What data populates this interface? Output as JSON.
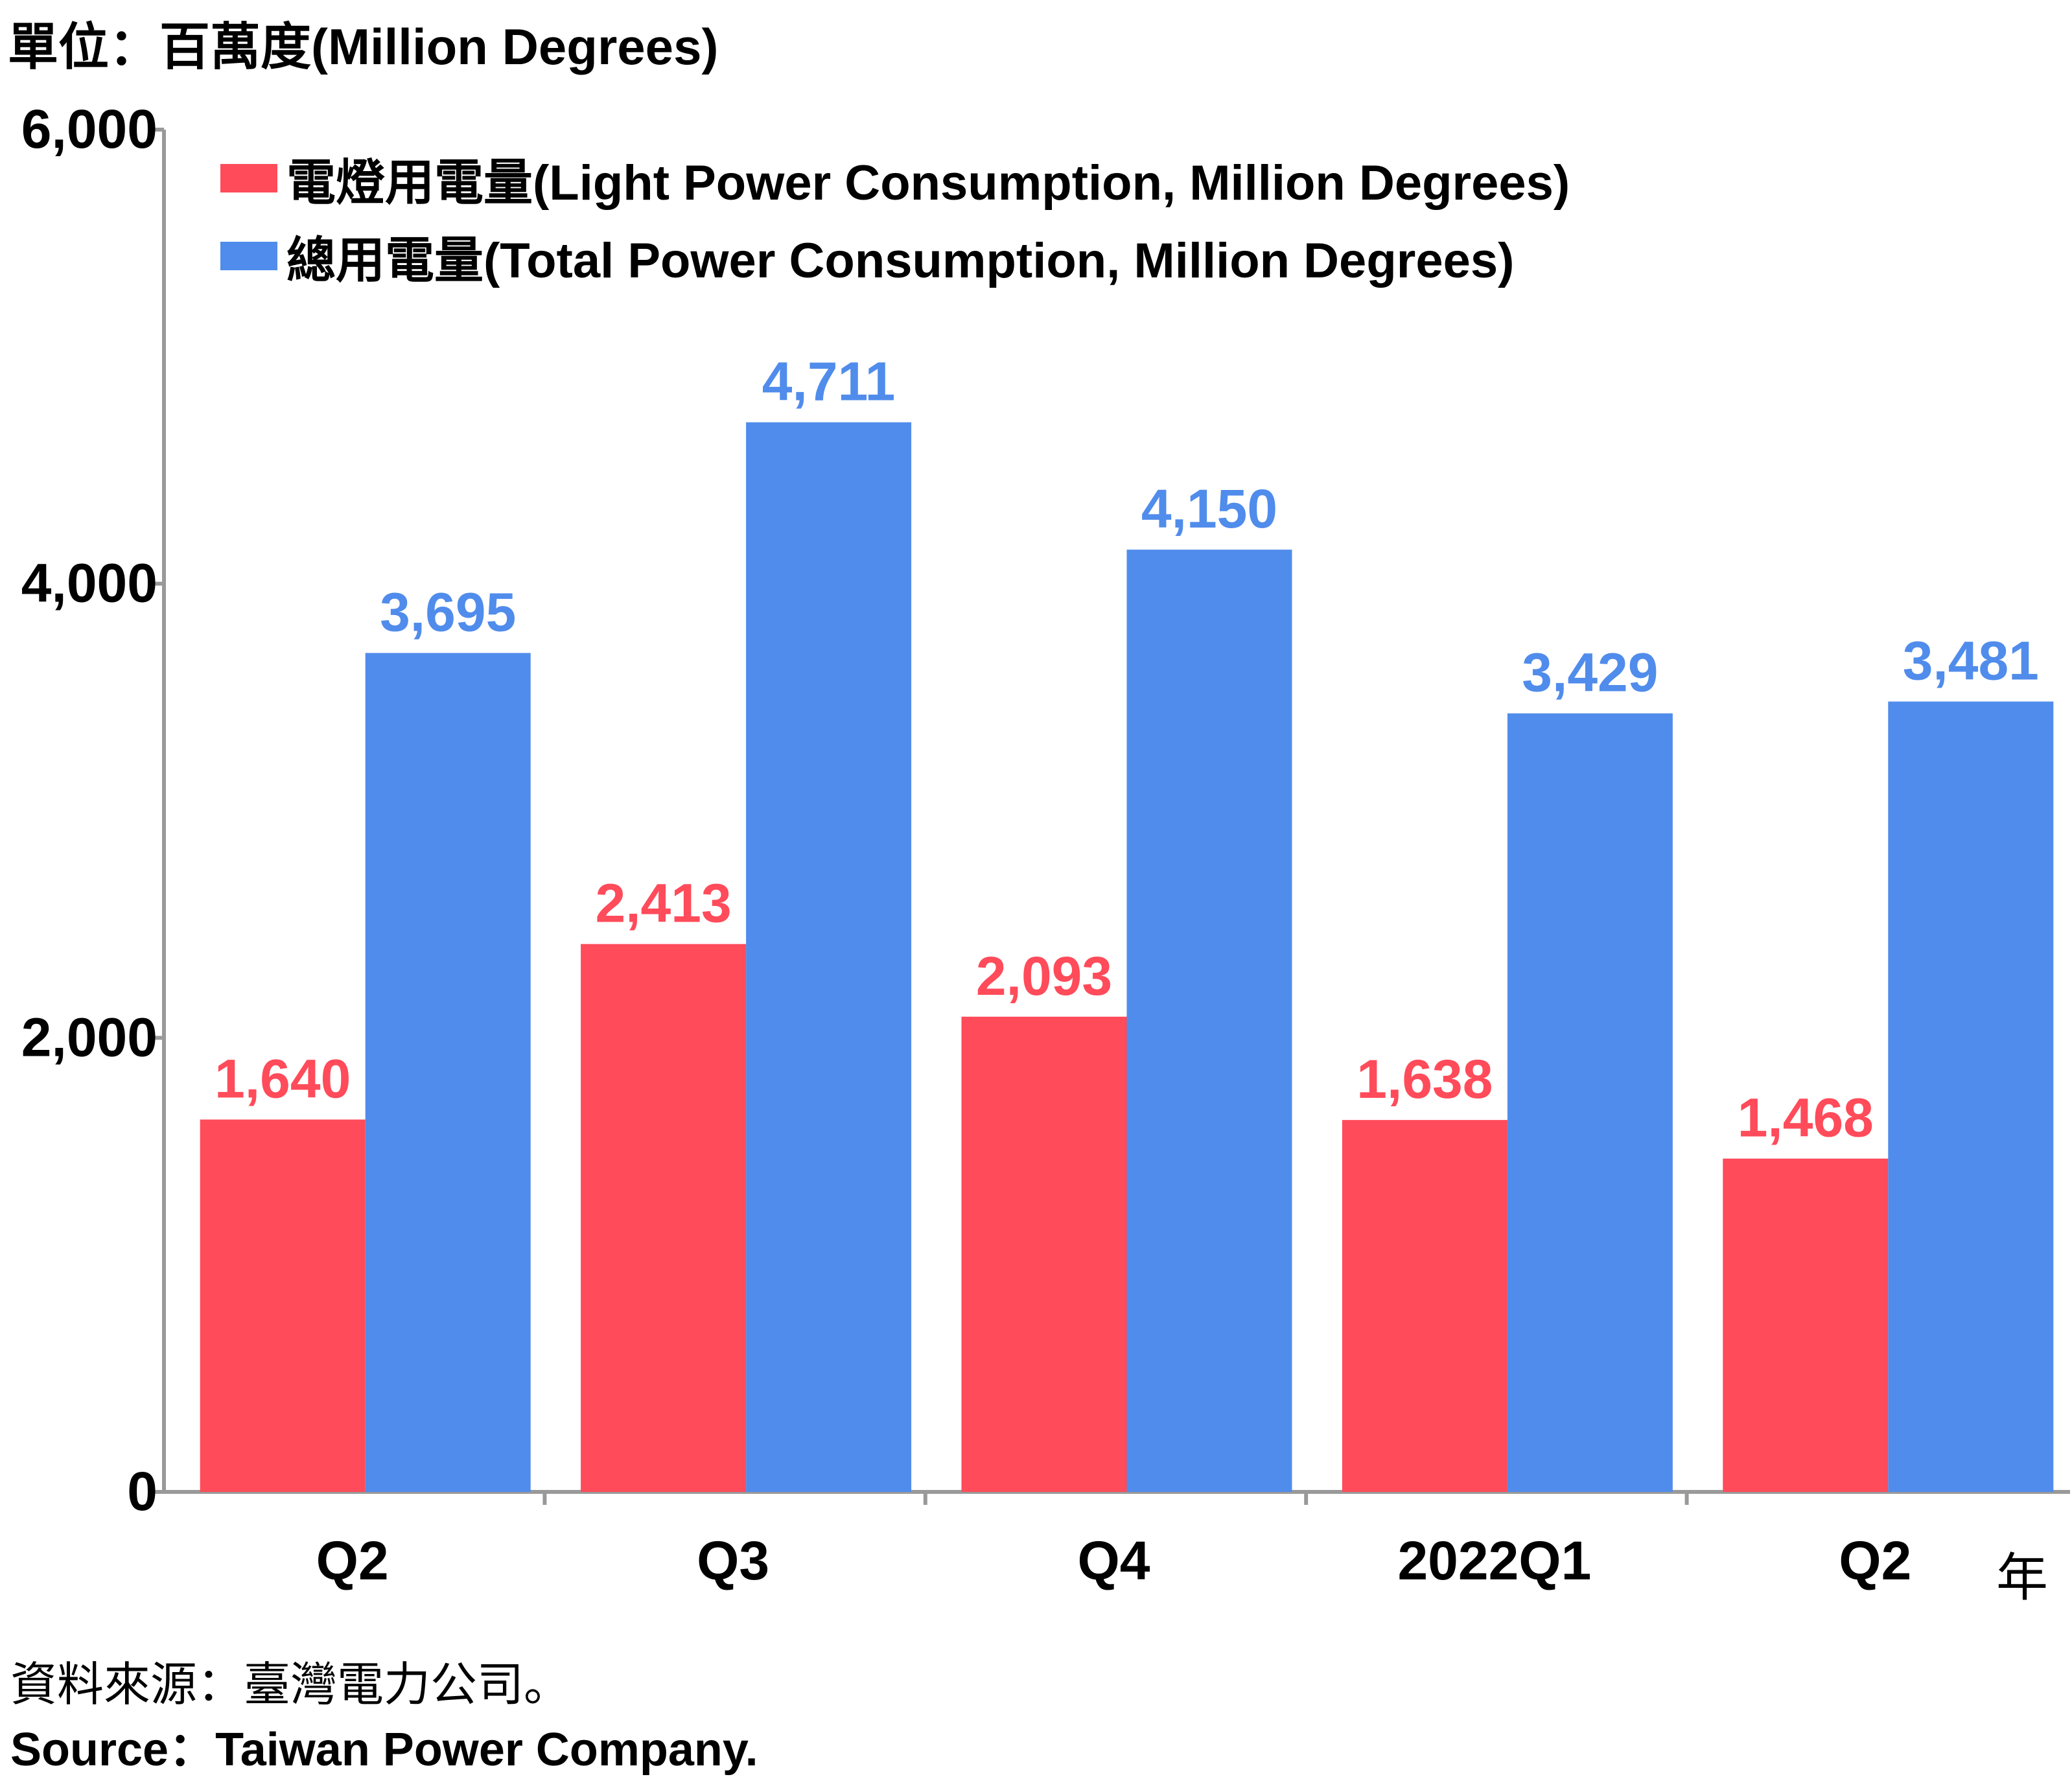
{
  "unit_label": "單位：百萬度(Million Degrees)",
  "source_zh": "資料來源：臺灣電力公司。",
  "source_en": "Source：Taiwan Power Company.",
  "year_mark": "年",
  "colors": {
    "light": "#FF4B5A",
    "total": "#508CEB",
    "axis": "#999999",
    "text": "#000000"
  },
  "chart_data": {
    "type": "bar",
    "categories": [
      "Q2",
      "Q3",
      "Q4",
      "2022Q1",
      "Q2"
    ],
    "series": [
      {
        "name": "電燈用電量(Light Power Consumption, Million Degrees)",
        "values": [
          1640,
          2413,
          2093,
          1638,
          1468
        ],
        "labels": [
          "1,640",
          "2,413",
          "2,093",
          "1,638",
          "1,468"
        ]
      },
      {
        "name": "總用電量(Total Power Consumption, Million Degrees)",
        "values": [
          3695,
          4711,
          4150,
          3429,
          3481
        ],
        "labels": [
          "3,695",
          "4,711",
          "4,150",
          "3,429",
          "3,481"
        ]
      }
    ],
    "ylim": [
      0,
      6000
    ],
    "yticks": [
      0,
      2000,
      4000,
      6000
    ],
    "ytick_labels": [
      "0",
      "2,000",
      "4,000",
      "6,000"
    ],
    "legend": "top-left",
    "grid": false
  }
}
